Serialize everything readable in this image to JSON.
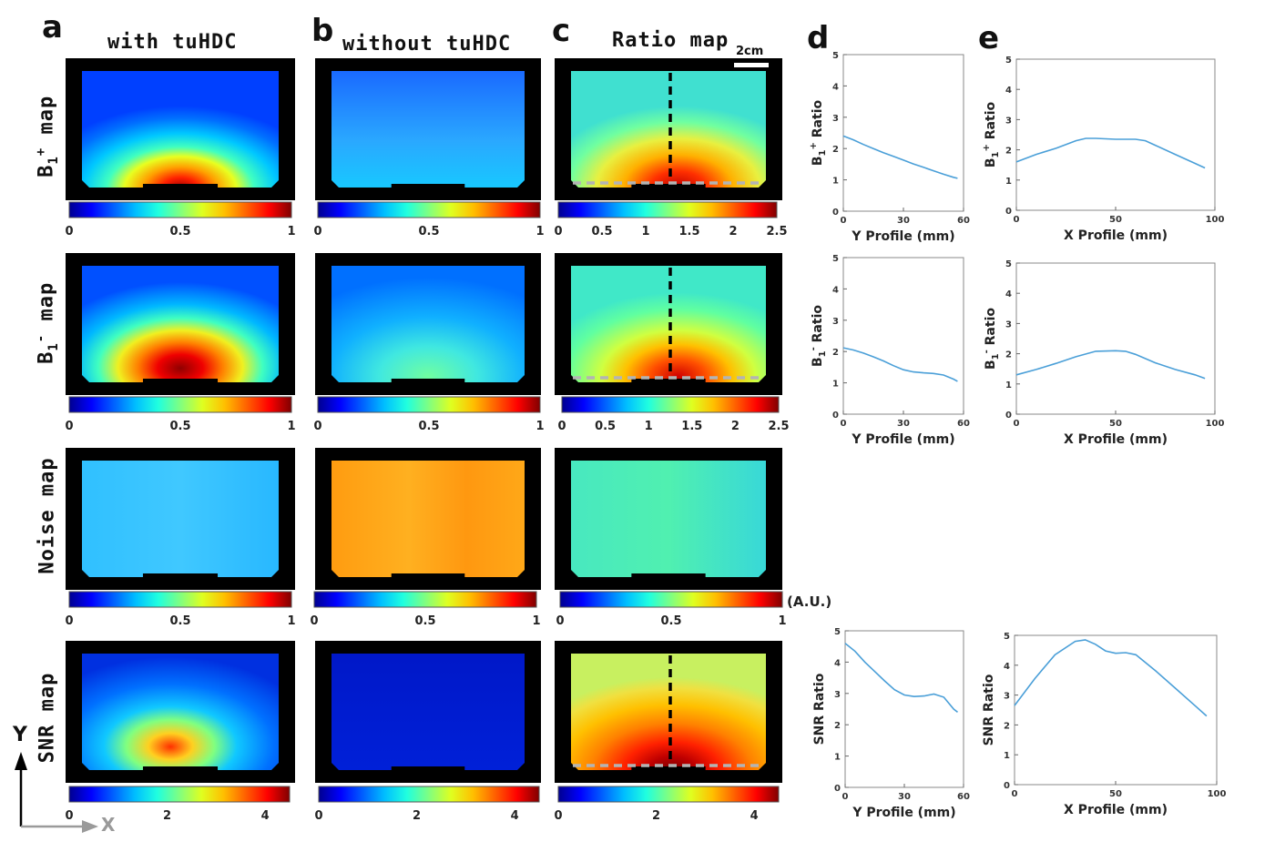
{
  "panel_letters": [
    "a",
    "b",
    "c",
    "d",
    "e"
  ],
  "column_titles": [
    "with tuHDC",
    "without tuHDC",
    "Ratio map"
  ],
  "row_labels": {
    "b1plus": {
      "main": "B",
      "sub": "1",
      "sup": "+",
      "rest": " map"
    },
    "b1minus": {
      "main": "B",
      "sub": "1",
      "sup": "-",
      "rest": " map"
    },
    "noise": "Noise map",
    "snr": "SNR map"
  },
  "scale_bar_label": "2cm",
  "au_label": "(A.U.)",
  "axis_arrows": {
    "y": "Y",
    "x": "X"
  },
  "colors": {
    "jet_dark_blue": "#00008f",
    "jet_red": "#800000",
    "profile_line": "#4a9fd8",
    "dashed_vertical": "#000000",
    "dashed_horizontal": "#b4b4b4"
  },
  "colorbars": {
    "unit_ticks": [
      "0",
      "0.5",
      "1"
    ],
    "ratio_ticks": [
      "0",
      "0.5",
      "1",
      "1.5",
      "2",
      "2.5"
    ],
    "snr_ticks": [
      "0",
      "2",
      "4"
    ],
    "noise_ratio_ticks": [
      "0",
      "0.5",
      "1"
    ]
  },
  "chart_data": [
    {
      "type": "line",
      "id": "d1",
      "title": "",
      "xlabel": "Y Profile (mm)",
      "ylabel": {
        "main": "B",
        "sub": "1",
        "sup": "+",
        "rest": " Ratio"
      },
      "xlim": [
        0,
        60
      ],
      "ylim": [
        0,
        5
      ],
      "xticks": [
        "0",
        "30",
        "60"
      ],
      "yticks": [
        "0",
        "1",
        "2",
        "3",
        "4",
        "5"
      ],
      "series": [
        {
          "name": "B1+ ratio",
          "x": [
            0,
            5,
            10,
            15,
            20,
            25,
            30,
            35,
            40,
            45,
            50,
            55,
            57
          ],
          "y": [
            2.4,
            2.28,
            2.13,
            2.0,
            1.87,
            1.75,
            1.63,
            1.51,
            1.4,
            1.29,
            1.18,
            1.08,
            1.05
          ]
        }
      ]
    },
    {
      "type": "line",
      "id": "e1",
      "title": "",
      "xlabel": "X Profile (mm)",
      "ylabel": {
        "main": "B",
        "sub": "1",
        "sup": "+",
        "rest": " Ratio"
      },
      "xlim": [
        0,
        100
      ],
      "ylim": [
        0,
        5
      ],
      "xticks": [
        "0",
        "50",
        "100"
      ],
      "yticks": [
        "0",
        "1",
        "2",
        "3",
        "4",
        "5"
      ],
      "series": [
        {
          "name": "B1+ ratio",
          "x": [
            0,
            10,
            20,
            30,
            35,
            40,
            50,
            60,
            65,
            70,
            80,
            90,
            95
          ],
          "y": [
            1.6,
            1.85,
            2.05,
            2.3,
            2.38,
            2.38,
            2.35,
            2.35,
            2.3,
            2.15,
            1.85,
            1.55,
            1.4
          ]
        }
      ]
    },
    {
      "type": "line",
      "id": "d2",
      "title": "",
      "xlabel": "Y Profile (mm)",
      "ylabel": {
        "main": "B",
        "sub": "1",
        "sup": "-",
        "rest": " Ratio"
      },
      "xlim": [
        0,
        60
      ],
      "ylim": [
        0,
        5
      ],
      "xticks": [
        "0",
        "30",
        "60"
      ],
      "yticks": [
        "0",
        "1",
        "2",
        "3",
        "4",
        "5"
      ],
      "series": [
        {
          "name": "B1- ratio",
          "x": [
            0,
            5,
            10,
            15,
            20,
            25,
            30,
            35,
            40,
            45,
            50,
            55,
            57
          ],
          "y": [
            2.12,
            2.05,
            1.95,
            1.83,
            1.7,
            1.55,
            1.42,
            1.35,
            1.32,
            1.3,
            1.25,
            1.12,
            1.05
          ]
        }
      ]
    },
    {
      "type": "line",
      "id": "e2",
      "title": "",
      "xlabel": "X Profile (mm)",
      "ylabel": {
        "main": "B",
        "sub": "1",
        "sup": "-",
        "rest": " Ratio"
      },
      "xlim": [
        0,
        100
      ],
      "ylim": [
        0,
        5
      ],
      "xticks": [
        "0",
        "50",
        "100"
      ],
      "yticks": [
        "0",
        "1",
        "2",
        "3",
        "4",
        "5"
      ],
      "series": [
        {
          "name": "B1- ratio",
          "x": [
            0,
            10,
            20,
            30,
            40,
            50,
            55,
            60,
            70,
            80,
            90,
            95
          ],
          "y": [
            1.3,
            1.48,
            1.68,
            1.9,
            2.08,
            2.1,
            2.08,
            1.98,
            1.7,
            1.48,
            1.3,
            1.18
          ]
        }
      ]
    },
    {
      "type": "line",
      "id": "d3",
      "title": "",
      "xlabel": "Y Profile (mm)",
      "ylabel": "SNR Ratio",
      "xlim": [
        0,
        60
      ],
      "ylim": [
        0,
        5
      ],
      "xticks": [
        "0",
        "30",
        "60"
      ],
      "yticks": [
        "0",
        "1",
        "2",
        "3",
        "4",
        "5"
      ],
      "series": [
        {
          "name": "SNR ratio",
          "x": [
            0,
            5,
            10,
            15,
            20,
            25,
            30,
            35,
            40,
            45,
            50,
            55,
            57
          ],
          "y": [
            4.6,
            4.35,
            4.0,
            3.7,
            3.4,
            3.12,
            2.95,
            2.9,
            2.92,
            2.98,
            2.88,
            2.5,
            2.4
          ]
        }
      ]
    },
    {
      "type": "line",
      "id": "e3",
      "title": "",
      "xlabel": "X Profile (mm)",
      "ylabel": "SNR Ratio",
      "xlim": [
        0,
        100
      ],
      "ylim": [
        0,
        5
      ],
      "xticks": [
        "0",
        "50",
        "100"
      ],
      "yticks": [
        "0",
        "1",
        "2",
        "3",
        "4",
        "5"
      ],
      "series": [
        {
          "name": "SNR ratio",
          "x": [
            0,
            10,
            20,
            30,
            35,
            40,
            45,
            50,
            55,
            60,
            70,
            80,
            90,
            95
          ],
          "y": [
            2.65,
            3.55,
            4.35,
            4.8,
            4.85,
            4.7,
            4.48,
            4.4,
            4.42,
            4.35,
            3.8,
            3.2,
            2.6,
            2.3
          ]
        }
      ]
    }
  ]
}
